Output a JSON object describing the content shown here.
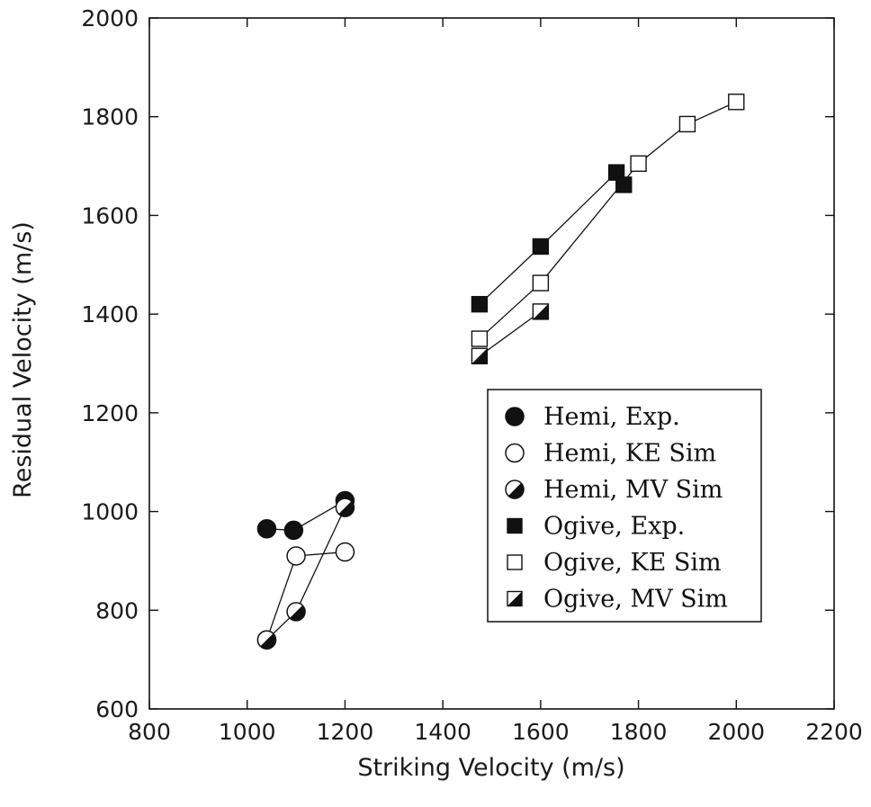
{
  "chart_data": {
    "type": "scatter",
    "title": "",
    "xlabel": "Striking Velocity (m/s)",
    "ylabel": "Residual Velocity (m/s)",
    "xlim": [
      800,
      2200
    ],
    "ylim": [
      600,
      2000
    ],
    "xticks": [
      "800",
      "1000",
      "1200",
      "1400",
      "1600",
      "1800",
      "2000",
      "2200"
    ],
    "yticks": [
      "600",
      "800",
      "1000",
      "1200",
      "1400",
      "1600",
      "1800",
      "2000"
    ],
    "grid": false,
    "legend_position": "right-center",
    "series": [
      {
        "name": "Hemi, Exp.",
        "marker": "circle-filled",
        "connected": true,
        "x": [
          1040,
          1095,
          1200
        ],
        "y": [
          965,
          962,
          1022
        ]
      },
      {
        "name": "Hemi, KE Sim",
        "marker": "circle-open",
        "connected": true,
        "x": [
          1040,
          1100,
          1200
        ],
        "y": [
          740,
          910,
          918
        ]
      },
      {
        "name": "Hemi, MV Sim",
        "marker": "circle-half",
        "connected": true,
        "x": [
          1040,
          1100,
          1200
        ],
        "y": [
          740,
          797,
          1008
        ]
      },
      {
        "name": "Ogive, Exp.",
        "marker": "square-filled",
        "connected": true,
        "x": [
          1475,
          1600,
          1755,
          1770
        ],
        "y": [
          1420,
          1537,
          1687,
          1662
        ]
      },
      {
        "name": "Ogive, KE Sim",
        "marker": "square-open",
        "connected": true,
        "x": [
          1475,
          1600,
          1800,
          1900,
          2000
        ],
        "y": [
          1350,
          1463,
          1705,
          1785,
          1830
        ]
      },
      {
        "name": "Ogive, MV Sim",
        "marker": "square-half",
        "connected": true,
        "x": [
          1475,
          1600
        ],
        "y": [
          1315,
          1405
        ]
      }
    ]
  }
}
